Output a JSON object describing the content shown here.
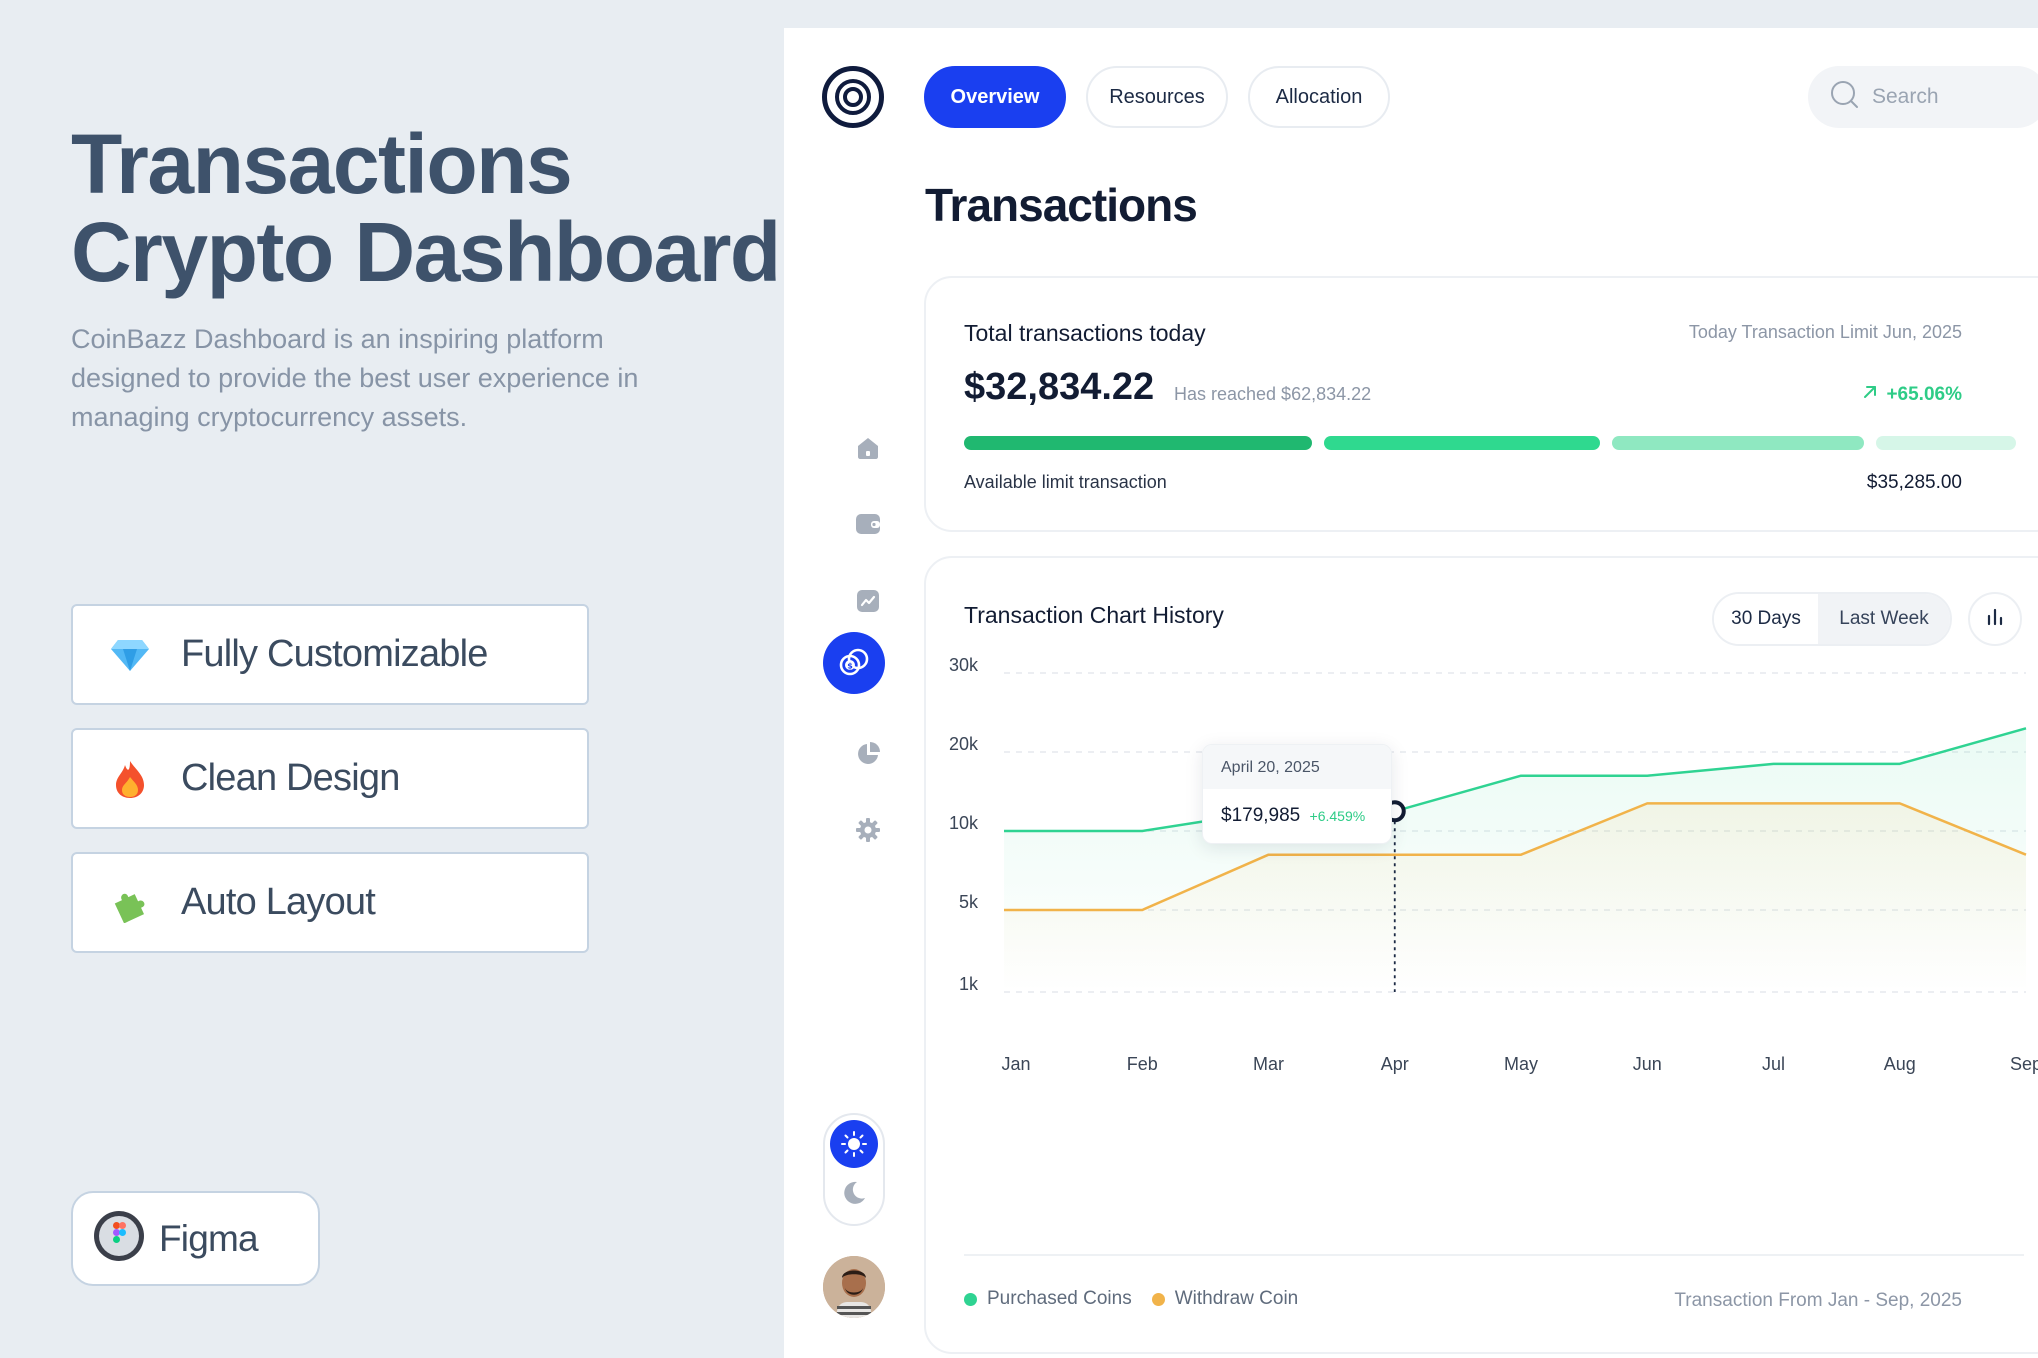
{
  "promo": {
    "title_line1": "Transactions",
    "title_line2": "Crypto Dashboard",
    "description": "CoinBazz Dashboard is an inspiring platform designed to provide the best user experience in managing cryptocurrency assets.",
    "features": [
      {
        "label": "Fully Customizable",
        "icon": "gem-icon"
      },
      {
        "label": "Clean Design",
        "icon": "fire-icon"
      },
      {
        "label": "Auto Layout",
        "icon": "puzzle-icon"
      }
    ],
    "figma_label": "Figma"
  },
  "nav": {
    "tabs": [
      {
        "label": "Overview",
        "active": true
      },
      {
        "label": "Resources",
        "active": false
      },
      {
        "label": "Allocation",
        "active": false
      }
    ],
    "search_placeholder": "Search",
    "sidebar_icons": [
      "home-icon",
      "wallet-icon",
      "chart-icon",
      "transactions-icon",
      "pie-chart-icon",
      "settings-icon"
    ],
    "active_icon": "transactions-icon"
  },
  "page": {
    "title": "Transactions"
  },
  "total": {
    "title": "Total transactions today",
    "limit_label": "Today Transaction Limit Jun, 2025",
    "amount": "$32,834.22",
    "reached": "Has reached $62,834.22",
    "change": "+65.06%",
    "available_label": "Available limit transaction",
    "available_value": "$35,285.00",
    "colors": [
      "#20b870",
      "#2fd98f",
      "#8fe8c1",
      "#d6f6e8"
    ]
  },
  "history": {
    "title": "Transaction Chart History",
    "range_options": [
      "30 Days",
      "Last Week"
    ],
    "tooltip_date": "April 20, 2025",
    "tooltip_value": "$179,985",
    "tooltip_change": "+6.459%",
    "footer_range": "Transaction From Jan - Sep, 2025"
  },
  "chart_data": {
    "type": "line",
    "x": [
      "Jan",
      "Feb",
      "Mar",
      "Apr",
      "May",
      "Jun",
      "Jul",
      "Aug",
      "Sep"
    ],
    "y_ticks": [
      "30k",
      "20k",
      "10k",
      "5k",
      "1k"
    ],
    "series": [
      {
        "name": "Purchased Coins",
        "color": "#2fd392",
        "values": [
          10,
          10,
          12.5,
          12.5,
          17,
          17,
          18.5,
          18.5,
          23
        ]
      },
      {
        "name": "Withdraw Coin",
        "color": "#f1b34a",
        "values": [
          5,
          5,
          8.5,
          8.5,
          8.5,
          13.5,
          13.5,
          13.5,
          8.5
        ]
      }
    ],
    "highlight": {
      "x": "Apr",
      "series": "Purchased Coins"
    },
    "grid": true,
    "legend": "bottom-left"
  }
}
